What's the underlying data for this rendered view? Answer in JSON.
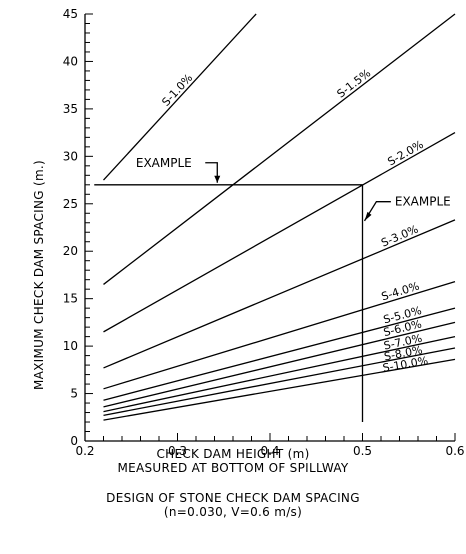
{
  "chart_data": {
    "type": "line",
    "xlabel": "CHECK DAM HEIGHT (m)",
    "xlabel_sub": "MEASURED AT BOTTOM OF SPILLWAY",
    "ylabel": "MAXIMUM CHECK DAM SPACING (m.)",
    "title": "DESIGN OF STONE CHECK DAM SPACING",
    "subtitle": "(n=0.030, V=0.6 m/s)",
    "xlim": [
      0.2,
      0.6
    ],
    "ylim": [
      0,
      45
    ],
    "x_ticks": [
      "0.2",
      "0.3",
      "0.4",
      "0.5",
      "0.6"
    ],
    "y_ticks": [
      "0",
      "5",
      "10",
      "15",
      "20",
      "25",
      "30",
      "35",
      "40",
      "45"
    ],
    "series": [
      {
        "name": "S-1.0%",
        "x": [
          0.22,
          0.385
        ],
        "y": [
          27.5,
          45
        ]
      },
      {
        "name": "S-1.5%",
        "x": [
          0.22,
          0.6
        ],
        "y": [
          16.5,
          45
        ]
      },
      {
        "name": "S-2.0%",
        "x": [
          0.22,
          0.6
        ],
        "y": [
          11.5,
          32.5
        ]
      },
      {
        "name": "S-3.0%",
        "x": [
          0.22,
          0.6
        ],
        "y": [
          7.7,
          23.3
        ]
      },
      {
        "name": "S-4.0%",
        "x": [
          0.22,
          0.6
        ],
        "y": [
          5.5,
          16.8
        ]
      },
      {
        "name": "S-5.0%",
        "x": [
          0.22,
          0.6
        ],
        "y": [
          4.3,
          14.0
        ]
      },
      {
        "name": "S-6.0%",
        "x": [
          0.22,
          0.6
        ],
        "y": [
          3.6,
          12.5
        ]
      },
      {
        "name": "S-7.0%",
        "x": [
          0.22,
          0.6
        ],
        "y": [
          3.1,
          11.0
        ]
      },
      {
        "name": "S-8.0%",
        "x": [
          0.22,
          0.6
        ],
        "y": [
          2.7,
          9.8
        ]
      },
      {
        "name": "S-10.0%",
        "x": [
          0.22,
          0.6
        ],
        "y": [
          2.2,
          8.6
        ]
      }
    ],
    "example": {
      "label": "EXAMPLE",
      "x": 0.5,
      "y": 27
    },
    "grid": false
  }
}
